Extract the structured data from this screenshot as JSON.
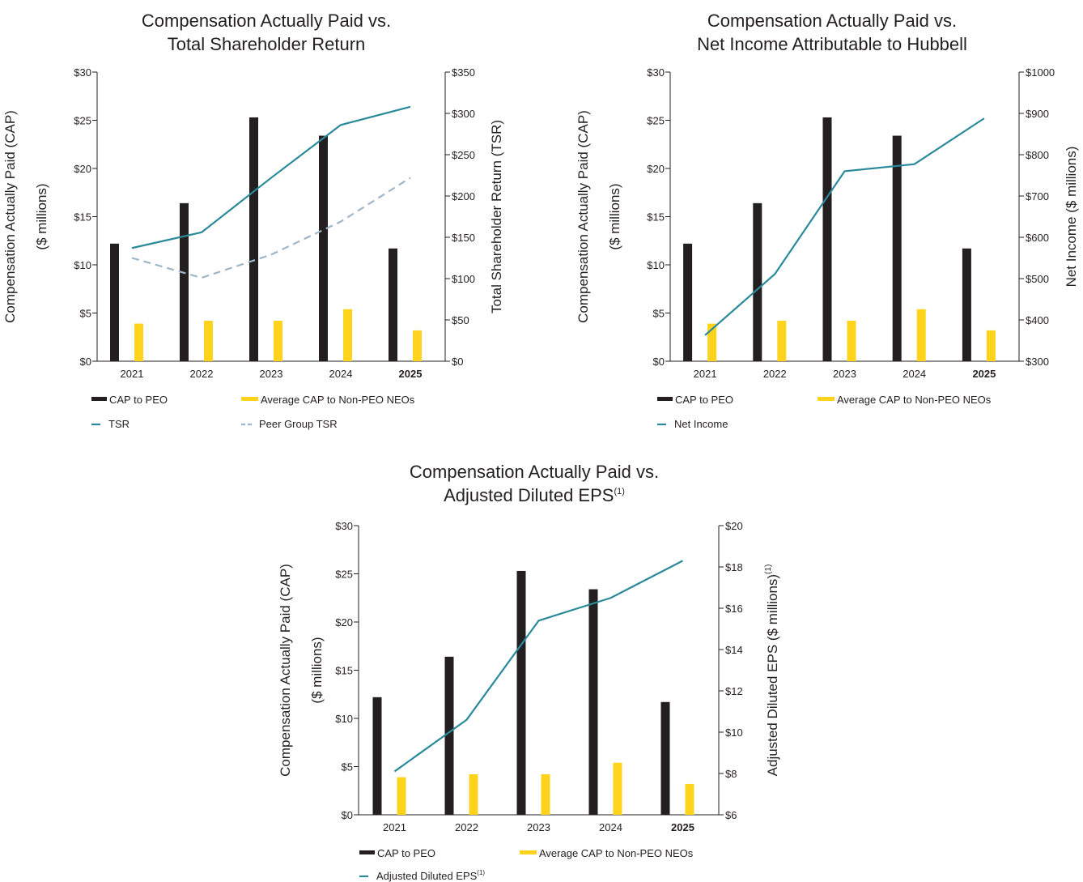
{
  "colors": {
    "cap_peo": "#231f20",
    "cap_neo": "#ffd31c",
    "line_primary": "#2a8a9a",
    "line_peer": "#9fb6c8",
    "axis": "#231f20"
  },
  "chart_data": [
    {
      "type": "bar",
      "title_lines": [
        "Compensation Actually Paid vs.",
        "Total Shareholder Return"
      ],
      "categories": [
        "2021",
        "2022",
        "2023",
        "2024",
        "2025"
      ],
      "bold_category": "2025",
      "ylabel_lines": [
        "Compensation Actually Paid (CAP)",
        "($ millions)"
      ],
      "y2label": "Total Shareholder Return (TSR)",
      "ylim": [
        0,
        30
      ],
      "y_ticks": [
        0,
        5,
        10,
        15,
        20,
        25,
        30
      ],
      "y_tick_labels": [
        "$0",
        "$5",
        "$10",
        "$15",
        "$20",
        "$25",
        "$30"
      ],
      "y2lim": [
        0,
        350
      ],
      "y2_ticks": [
        0,
        50,
        100,
        150,
        200,
        250,
        300,
        350
      ],
      "y2_tick_labels": [
        "$0",
        "$50",
        "$100",
        "$150",
        "$200",
        "$250",
        "$300",
        "$350"
      ],
      "series": [
        {
          "name": "CAP to PEO",
          "kind": "bar",
          "axis": "left",
          "values": [
            12.2,
            16.4,
            25.3,
            23.4,
            11.7
          ]
        },
        {
          "name": "Average CAP to Non-PEO NEOs",
          "kind": "bar",
          "axis": "left",
          "values": [
            3.9,
            4.2,
            4.2,
            5.4,
            3.2
          ]
        },
        {
          "name": "TSR",
          "kind": "line",
          "axis": "right",
          "values": [
            137,
            156,
            222,
            286,
            308
          ]
        },
        {
          "name": "Peer Group TSR",
          "kind": "dashed",
          "axis": "right",
          "values": [
            125,
            101,
            129,
            169,
            222
          ]
        }
      ],
      "legend_rows": [
        [
          "CAP to PEO",
          "Average CAP to Non-PEO NEOs"
        ],
        [
          "TSR",
          "Peer Group TSR"
        ]
      ]
    },
    {
      "type": "bar",
      "title_lines": [
        "Compensation Actually Paid vs.",
        "Net Income Attributable to Hubbell"
      ],
      "categories": [
        "2021",
        "2022",
        "2023",
        "2024",
        "2025"
      ],
      "bold_category": "2025",
      "ylabel_lines": [
        "Compensation Actually Paid (CAP)",
        "($ millions)"
      ],
      "y2label": "Net Income ($ millions)",
      "ylim": [
        0,
        30
      ],
      "y_ticks": [
        0,
        5,
        10,
        15,
        20,
        25,
        30
      ],
      "y_tick_labels": [
        "$0",
        "$5",
        "$10",
        "$15",
        "$20",
        "$25",
        "$30"
      ],
      "y2lim": [
        300,
        1000
      ],
      "y2_ticks": [
        300,
        400,
        500,
        600,
        700,
        800,
        900,
        1000
      ],
      "y2_tick_labels": [
        "$300",
        "$400",
        "$500",
        "$600",
        "$700",
        "$800",
        "$900",
        "$1000"
      ],
      "series": [
        {
          "name": "CAP to PEO",
          "kind": "bar",
          "axis": "left",
          "values": [
            12.2,
            16.4,
            25.3,
            23.4,
            11.7
          ]
        },
        {
          "name": "Average CAP to Non-PEO NEOs",
          "kind": "bar",
          "axis": "left",
          "values": [
            3.9,
            4.2,
            4.2,
            5.4,
            3.2
          ]
        },
        {
          "name": "Net Income",
          "kind": "line",
          "axis": "right",
          "values": [
            363,
            511,
            760,
            777,
            888
          ]
        }
      ],
      "legend_rows": [
        [
          "CAP to PEO",
          "Average CAP to Non-PEO NEOs"
        ],
        [
          "Net Income"
        ]
      ]
    },
    {
      "type": "bar",
      "title_lines": [
        "Compensation Actually Paid vs.",
        "Adjusted Diluted EPS"
      ],
      "title_superscript": "(1)",
      "categories": [
        "2021",
        "2022",
        "2023",
        "2024",
        "2025"
      ],
      "bold_category": "2025",
      "ylabel_lines": [
        "Compensation Actually Paid (CAP)",
        "($ millions)"
      ],
      "y2label": "Adjusted Diluted EPS ($ millions)",
      "y2label_superscript": "(1)",
      "ylim": [
        0,
        30
      ],
      "y_ticks": [
        0,
        5,
        10,
        15,
        20,
        25,
        30
      ],
      "y_tick_labels": [
        "$0",
        "$5",
        "$10",
        "$15",
        "$20",
        "$25",
        "$30"
      ],
      "y2lim": [
        6,
        20
      ],
      "y2_ticks": [
        6,
        8,
        10,
        12,
        14,
        16,
        18,
        20
      ],
      "y2_tick_labels": [
        "$6",
        "$8",
        "$10",
        "$12",
        "$14",
        "$16",
        "$18",
        "$20"
      ],
      "series": [
        {
          "name": "CAP to PEO",
          "kind": "bar",
          "axis": "left",
          "values": [
            12.2,
            16.4,
            25.3,
            23.4,
            11.7
          ]
        },
        {
          "name": "Average CAP to Non-PEO NEOs",
          "kind": "bar",
          "axis": "left",
          "values": [
            3.9,
            4.2,
            4.2,
            5.4,
            3.2
          ]
        },
        {
          "name": "Adjusted Diluted EPS",
          "name_superscript": "(1)",
          "kind": "line",
          "axis": "right",
          "values": [
            8.1,
            10.6,
            15.4,
            16.5,
            18.3
          ]
        }
      ],
      "legend_rows": [
        [
          "CAP to PEO",
          "Average CAP to Non-PEO NEOs"
        ],
        [
          "Adjusted Diluted EPS"
        ]
      ]
    }
  ]
}
